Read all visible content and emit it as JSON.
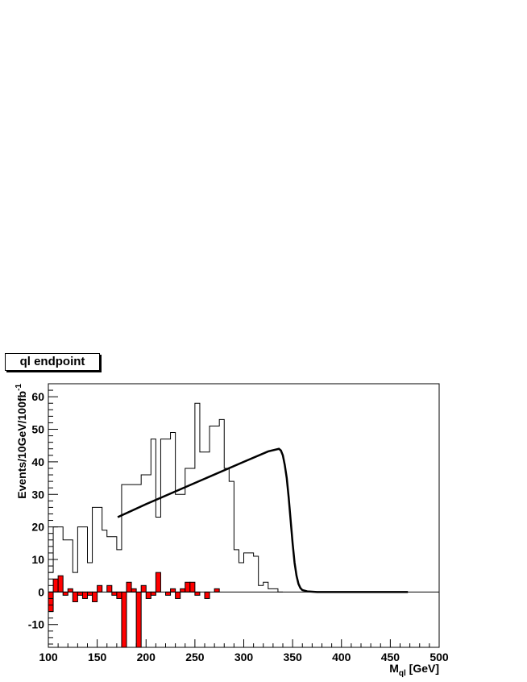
{
  "chart_data": {
    "type": "bar",
    "title": "ql endpoint",
    "xlabel_main": "M",
    "xlabel_sub": "ql",
    "xlabel_unit": " [GeV]",
    "ylabel_main": "Events/10GeV/100fb",
    "ylabel_sup": "-1",
    "xlim": [
      100,
      500
    ],
    "ylim": [
      -17,
      64
    ],
    "x_ticks": [
      100,
      150,
      200,
      250,
      300,
      350,
      400,
      450,
      500
    ],
    "y_ticks": [
      -10,
      0,
      10,
      20,
      30,
      40,
      50,
      60
    ],
    "bin_width": 5,
    "series": [
      {
        "style": "outline",
        "color": "#000000",
        "bins": [
          [
            100,
            6
          ],
          [
            105,
            20
          ],
          [
            115,
            16
          ],
          [
            125,
            6
          ],
          [
            130,
            20
          ],
          [
            140,
            9
          ],
          [
            145,
            26
          ],
          [
            155,
            19
          ],
          [
            160,
            17
          ],
          [
            170,
            13
          ],
          [
            175,
            33
          ],
          [
            185,
            33
          ],
          [
            195,
            36
          ],
          [
            205,
            47
          ],
          [
            210,
            23
          ],
          [
            215,
            47
          ],
          [
            225,
            49
          ],
          [
            230,
            30
          ],
          [
            240,
            38
          ],
          [
            250,
            58
          ],
          [
            255,
            43
          ],
          [
            265,
            51
          ],
          [
            275,
            53
          ],
          [
            280,
            38
          ],
          [
            285,
            34
          ],
          [
            290,
            13
          ],
          [
            295,
            9
          ],
          [
            300,
            12
          ],
          [
            310,
            11
          ],
          [
            315,
            2
          ],
          [
            320,
            3
          ],
          [
            325,
            1
          ],
          [
            330,
            1
          ],
          [
            335,
            0
          ]
        ]
      },
      {
        "style": "filled",
        "color": "#ff0000",
        "bins": [
          [
            100,
            -6
          ],
          [
            105,
            4
          ],
          [
            110,
            5
          ],
          [
            115,
            -1
          ],
          [
            120,
            1
          ],
          [
            125,
            -3
          ],
          [
            130,
            -1
          ],
          [
            135,
            -2
          ],
          [
            140,
            -1
          ],
          [
            145,
            -3
          ],
          [
            150,
            2
          ],
          [
            160,
            2
          ],
          [
            165,
            -1
          ],
          [
            170,
            -2
          ],
          [
            175,
            -17
          ],
          [
            180,
            3
          ],
          [
            185,
            1
          ],
          [
            190,
            -17
          ],
          [
            195,
            2
          ],
          [
            200,
            -2
          ],
          [
            205,
            -1
          ],
          [
            210,
            6
          ],
          [
            215,
            0
          ],
          [
            220,
            -1
          ],
          [
            225,
            1
          ],
          [
            230,
            -2
          ],
          [
            235,
            1
          ],
          [
            240,
            3
          ],
          [
            245,
            3
          ],
          [
            250,
            -1
          ],
          [
            255,
            0
          ],
          [
            260,
            -2
          ],
          [
            265,
            0
          ],
          [
            270,
            1
          ],
          [
            275,
            0
          ]
        ]
      }
    ],
    "fit": {
      "style": "line",
      "color": "#000000",
      "points": [
        [
          171,
          23
        ],
        [
          200,
          27
        ],
        [
          250,
          33.5
        ],
        [
          300,
          40
        ],
        [
          325,
          43.2
        ],
        [
          336,
          44
        ],
        [
          338,
          43.5
        ],
        [
          340,
          42
        ],
        [
          342,
          39
        ],
        [
          344,
          35
        ],
        [
          346,
          29
        ],
        [
          348,
          22
        ],
        [
          350,
          15
        ],
        [
          352,
          9
        ],
        [
          354,
          5
        ],
        [
          356,
          2.5
        ],
        [
          358,
          1.2
        ],
        [
          360,
          0.6
        ],
        [
          365,
          0.2
        ],
        [
          375,
          0
        ],
        [
          468,
          0
        ]
      ]
    }
  }
}
